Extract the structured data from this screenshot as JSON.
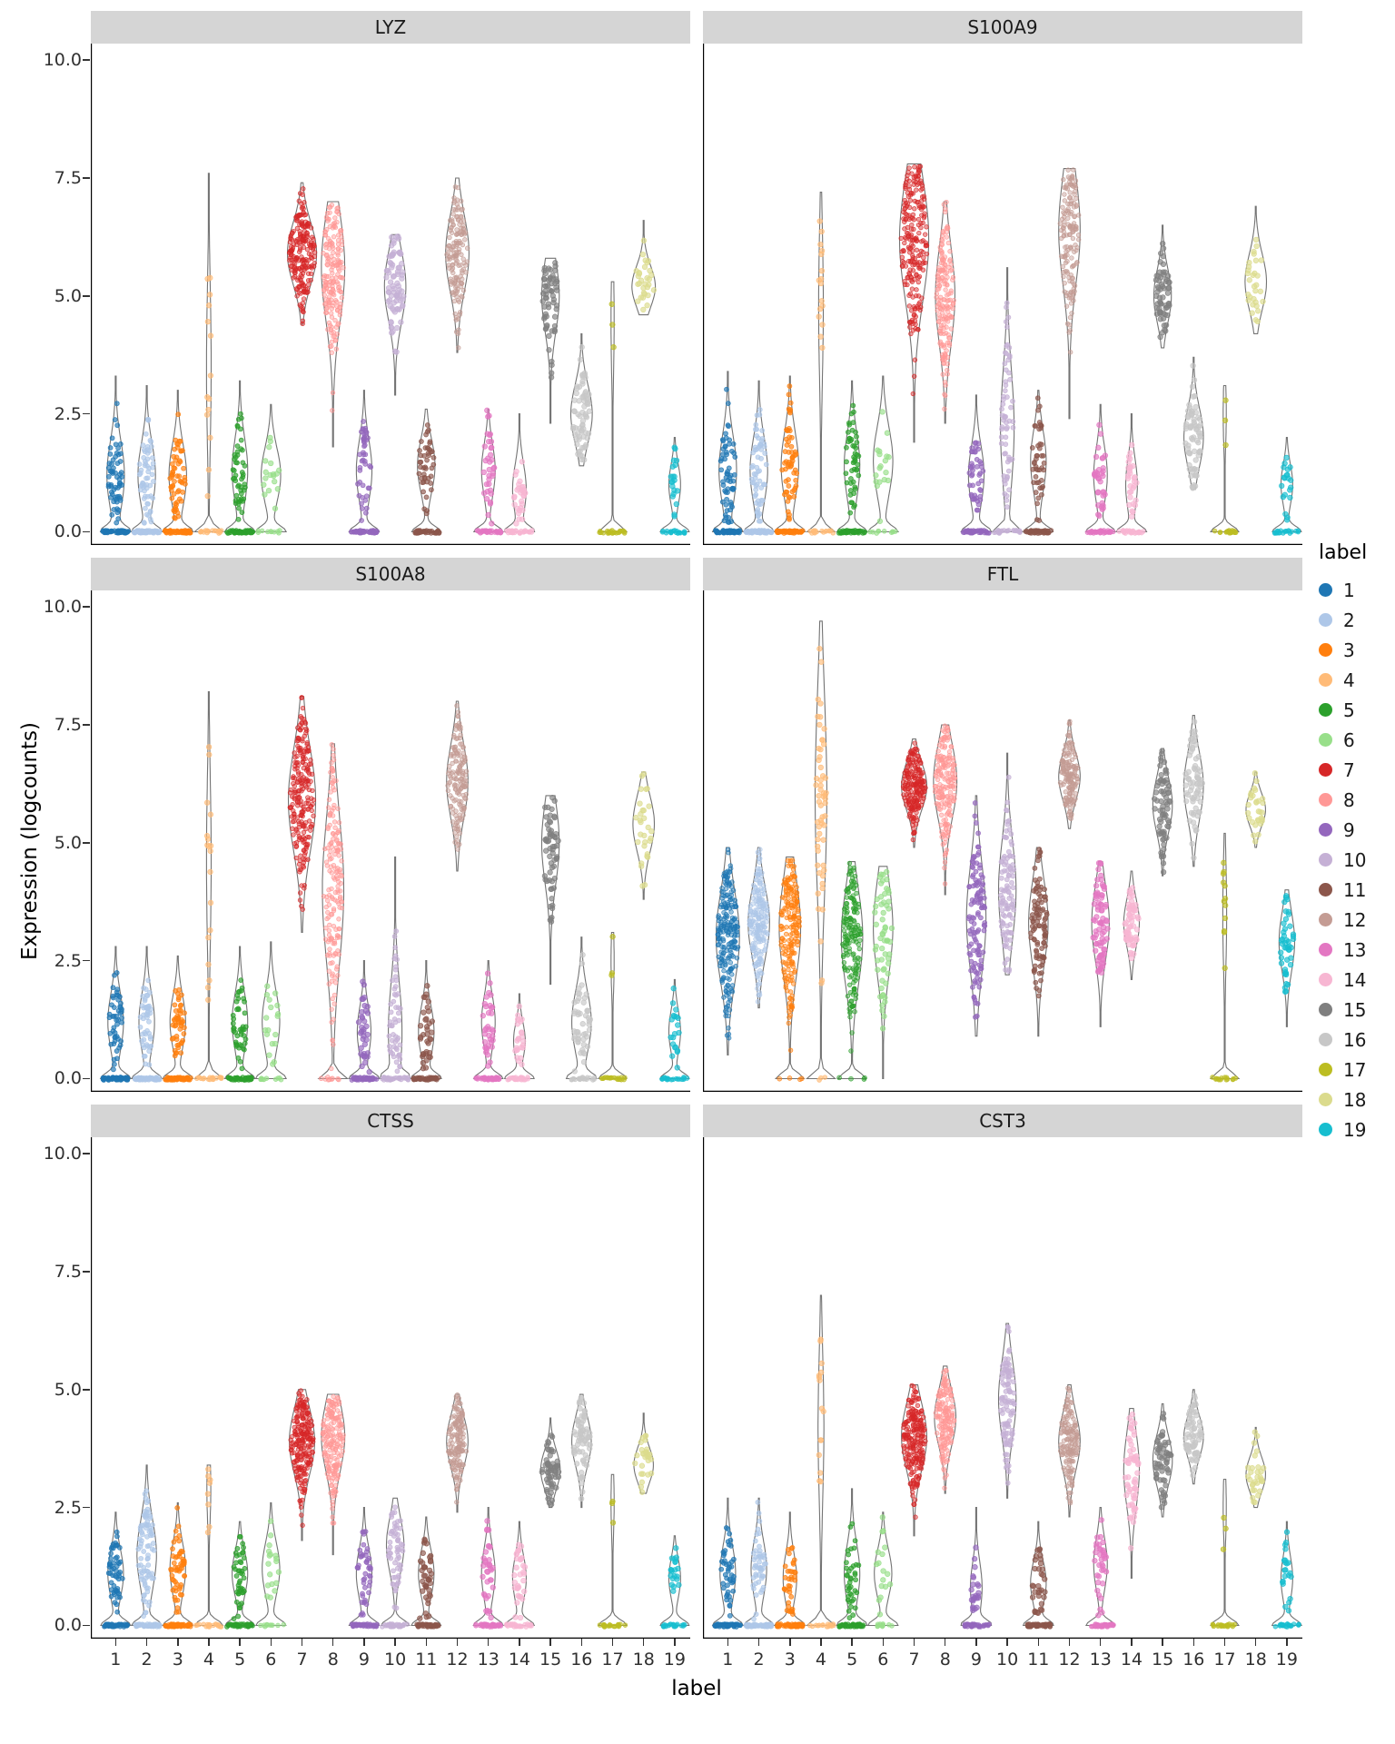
{
  "chart_data": {
    "type": "violin",
    "title": "",
    "xlabel": "label",
    "ylabel": "Expression (logcounts)",
    "x_categories": [
      "1",
      "2",
      "3",
      "4",
      "5",
      "6",
      "7",
      "8",
      "9",
      "10",
      "11",
      "12",
      "13",
      "14",
      "15",
      "16",
      "17",
      "18",
      "19"
    ],
    "y_ticks": [
      0,
      2.5,
      5,
      7.5,
      10
    ],
    "y_tick_labels": [
      "0.0",
      "2.5",
      "5.0",
      "7.5",
      "10.0"
    ],
    "ylim": [
      -0.3,
      10.4
    ],
    "grid": false,
    "legend": {
      "title": "label",
      "position": "right",
      "labels": [
        "1",
        "2",
        "3",
        "4",
        "5",
        "6",
        "7",
        "8",
        "9",
        "10",
        "11",
        "12",
        "13",
        "14",
        "15",
        "16",
        "17",
        "18",
        "19"
      ]
    },
    "palette": [
      "#1f77b4",
      "#aec7e8",
      "#ff7f0e",
      "#ffbb78",
      "#2ca02c",
      "#98df8a",
      "#d62728",
      "#ff9896",
      "#9467bd",
      "#c5b0d5",
      "#8c564b",
      "#c49c94",
      "#e377c2",
      "#f7b6d2",
      "#7f7f7f",
      "#c7c7c7",
      "#bcbd22",
      "#dbdb8d",
      "#17becf"
    ],
    "violin_format": [
      "center",
      "min",
      "max",
      "relative_width",
      "fraction_at_zero",
      "n_points"
    ],
    "panels": [
      {
        "title": "LYZ",
        "violins": [
          [
            1.2,
            0,
            3.3,
            0.45,
            0.5,
            120
          ],
          [
            1.2,
            0,
            3.1,
            0.45,
            0.5,
            120
          ],
          [
            1.2,
            0,
            3.0,
            0.45,
            0.5,
            120
          ],
          [
            3.5,
            0,
            7.6,
            0.12,
            0.55,
            32
          ],
          [
            1.3,
            0,
            3.2,
            0.4,
            0.5,
            100
          ],
          [
            1.2,
            0,
            2.7,
            0.5,
            0.35,
            28
          ],
          [
            5.9,
            4.4,
            7.4,
            0.75,
            0,
            210
          ],
          [
            5.6,
            1.8,
            7.0,
            0.6,
            0,
            180
          ],
          [
            1.3,
            0,
            3.0,
            0.4,
            0.5,
            90
          ],
          [
            5.2,
            2.9,
            6.3,
            0.55,
            0,
            80
          ],
          [
            1.4,
            0,
            2.6,
            0.45,
            0.5,
            90
          ],
          [
            5.9,
            3.8,
            7.5,
            0.6,
            0,
            150
          ],
          [
            1.3,
            0,
            2.6,
            0.35,
            0.5,
            70
          ],
          [
            0.9,
            0,
            2.5,
            0.35,
            0.5,
            60
          ],
          [
            5.0,
            2.3,
            5.8,
            0.45,
            0,
            60
          ],
          [
            2.5,
            1.4,
            4.2,
            0.55,
            0,
            70
          ],
          [
            4.5,
            0,
            5.3,
            0.08,
            0.88,
            26
          ],
          [
            5.2,
            4.6,
            6.6,
            0.6,
            0,
            30
          ],
          [
            1.0,
            0,
            2.0,
            0.3,
            0.5,
            40
          ]
        ]
      },
      {
        "title": "S100A9",
        "violins": [
          [
            1.3,
            0,
            3.4,
            0.45,
            0.5,
            120
          ],
          [
            1.3,
            0,
            3.2,
            0.45,
            0.5,
            120
          ],
          [
            1.4,
            0,
            3.3,
            0.45,
            0.5,
            120
          ],
          [
            4.8,
            0,
            7.2,
            0.12,
            0.5,
            32
          ],
          [
            1.4,
            0,
            3.2,
            0.4,
            0.5,
            100
          ],
          [
            1.5,
            0,
            3.3,
            0.5,
            0.35,
            28
          ],
          [
            6.2,
            1.9,
            7.8,
            0.75,
            0,
            220
          ],
          [
            5.0,
            2.3,
            7.0,
            0.5,
            0,
            170
          ],
          [
            1.2,
            0,
            2.9,
            0.4,
            0.5,
            90
          ],
          [
            2.2,
            0,
            5.6,
            0.35,
            0.3,
            90
          ],
          [
            1.5,
            0,
            3.0,
            0.4,
            0.5,
            90
          ],
          [
            6.4,
            2.4,
            7.7,
            0.55,
            0,
            150
          ],
          [
            1.2,
            0,
            2.7,
            0.35,
            0.5,
            70
          ],
          [
            1.0,
            0,
            2.5,
            0.3,
            0.5,
            60
          ],
          [
            5.0,
            3.9,
            6.5,
            0.45,
            0,
            60
          ],
          [
            2.0,
            0.9,
            3.7,
            0.5,
            0,
            70
          ],
          [
            2.5,
            0,
            3.1,
            0.08,
            0.88,
            22
          ],
          [
            5.3,
            4.2,
            6.9,
            0.55,
            0,
            30
          ],
          [
            1.0,
            0,
            2.0,
            0.3,
            0.5,
            40
          ]
        ]
      },
      {
        "title": "S100A8",
        "violins": [
          [
            1.2,
            0,
            2.8,
            0.4,
            0.55,
            110
          ],
          [
            1.2,
            0,
            2.8,
            0.4,
            0.55,
            110
          ],
          [
            1.2,
            0,
            2.6,
            0.4,
            0.55,
            110
          ],
          [
            4.6,
            0,
            8.2,
            0.12,
            0.5,
            36
          ],
          [
            1.2,
            0,
            2.8,
            0.4,
            0.5,
            90
          ],
          [
            1.2,
            0,
            2.9,
            0.45,
            0.35,
            28
          ],
          [
            5.9,
            3.1,
            8.1,
            0.7,
            0,
            220
          ],
          [
            4.0,
            0,
            7.1,
            0.55,
            0.05,
            180
          ],
          [
            1.0,
            0,
            2.5,
            0.35,
            0.55,
            80
          ],
          [
            1.0,
            0,
            4.7,
            0.35,
            0.4,
            90
          ],
          [
            1.0,
            0,
            2.5,
            0.4,
            0.55,
            80
          ],
          [
            6.3,
            4.4,
            8.0,
            0.55,
            0,
            150
          ],
          [
            1.2,
            0,
            2.5,
            0.35,
            0.5,
            70
          ],
          [
            0.8,
            0,
            1.8,
            0.3,
            0.5,
            50
          ],
          [
            5.0,
            2.0,
            6.0,
            0.45,
            0,
            60
          ],
          [
            1.2,
            0,
            3.0,
            0.5,
            0.3,
            70
          ],
          [
            2.5,
            0,
            3.1,
            0.08,
            0.88,
            22
          ],
          [
            5.4,
            3.8,
            6.5,
            0.55,
            0,
            30
          ],
          [
            1.0,
            0,
            2.1,
            0.3,
            0.5,
            40
          ]
        ]
      },
      {
        "title": "FTL",
        "violins": [
          [
            3.0,
            0.5,
            4.9,
            0.6,
            0,
            220
          ],
          [
            3.3,
            1.5,
            4.9,
            0.55,
            0,
            200
          ],
          [
            3.2,
            0,
            4.7,
            0.55,
            0.02,
            200
          ],
          [
            6.0,
            0,
            9.7,
            0.3,
            0.05,
            60
          ],
          [
            3.0,
            0,
            4.6,
            0.55,
            0.02,
            180
          ],
          [
            3.2,
            0,
            4.5,
            0.5,
            0,
            60
          ],
          [
            6.2,
            4.9,
            7.2,
            0.65,
            0,
            200
          ],
          [
            6.3,
            3.9,
            7.5,
            0.6,
            0,
            180
          ],
          [
            3.4,
            0.9,
            6.0,
            0.5,
            0,
            120
          ],
          [
            4.0,
            2.2,
            6.9,
            0.45,
            0,
            100
          ],
          [
            3.3,
            0.9,
            4.9,
            0.5,
            0,
            100
          ],
          [
            6.4,
            5.3,
            7.6,
            0.55,
            0,
            150
          ],
          [
            3.3,
            1.1,
            4.6,
            0.45,
            0,
            80
          ],
          [
            3.3,
            2.1,
            4.4,
            0.4,
            0,
            60
          ],
          [
            5.8,
            4.3,
            7.0,
            0.5,
            0,
            70
          ],
          [
            6.2,
            4.5,
            7.7,
            0.5,
            0,
            70
          ],
          [
            3.5,
            0,
            5.2,
            0.1,
            0.55,
            26
          ],
          [
            5.7,
            4.9,
            6.5,
            0.5,
            0,
            30
          ],
          [
            2.9,
            1.1,
            4.0,
            0.4,
            0,
            45
          ]
        ]
      },
      {
        "title": "CTSS",
        "violins": [
          [
            1.1,
            0,
            2.4,
            0.4,
            0.5,
            110
          ],
          [
            1.5,
            0,
            3.4,
            0.5,
            0.35,
            130
          ],
          [
            1.2,
            0,
            2.6,
            0.4,
            0.5,
            110
          ],
          [
            2.9,
            0,
            3.4,
            0.1,
            0.7,
            26
          ],
          [
            1.1,
            0,
            2.2,
            0.4,
            0.5,
            90
          ],
          [
            1.2,
            0,
            2.6,
            0.45,
            0.35,
            28
          ],
          [
            3.9,
            1.8,
            5.0,
            0.65,
            0,
            220
          ],
          [
            4.0,
            1.5,
            4.9,
            0.6,
            0,
            180
          ],
          [
            1.1,
            0,
            2.5,
            0.4,
            0.5,
            90
          ],
          [
            1.7,
            0,
            2.7,
            0.45,
            0.35,
            90
          ],
          [
            1.1,
            0,
            2.3,
            0.4,
            0.5,
            80
          ],
          [
            3.9,
            2.4,
            4.9,
            0.55,
            0,
            150
          ],
          [
            1.1,
            0,
            2.5,
            0.35,
            0.5,
            70
          ],
          [
            1.0,
            0,
            2.2,
            0.35,
            0.45,
            60
          ],
          [
            3.3,
            2.5,
            4.4,
            0.5,
            0,
            60
          ],
          [
            3.9,
            2.5,
            4.9,
            0.5,
            0,
            70
          ],
          [
            2.6,
            0,
            3.2,
            0.08,
            0.88,
            22
          ],
          [
            3.4,
            2.8,
            4.5,
            0.5,
            0,
            30
          ],
          [
            1.0,
            0,
            1.9,
            0.3,
            0.5,
            40
          ]
        ]
      },
      {
        "title": "CST3",
        "violins": [
          [
            1.1,
            0,
            2.7,
            0.4,
            0.55,
            100
          ],
          [
            1.2,
            0,
            2.7,
            0.4,
            0.5,
            100
          ],
          [
            1.0,
            0,
            2.4,
            0.35,
            0.6,
            90
          ],
          [
            4.2,
            0,
            7.0,
            0.15,
            0.5,
            30
          ],
          [
            1.1,
            0,
            2.9,
            0.4,
            0.55,
            90
          ],
          [
            1.1,
            0,
            2.4,
            0.45,
            0.4,
            28
          ],
          [
            4.0,
            1.9,
            5.1,
            0.65,
            0,
            220
          ],
          [
            4.4,
            2.8,
            5.5,
            0.55,
            0,
            160
          ],
          [
            0.8,
            0,
            2.5,
            0.3,
            0.6,
            60
          ],
          [
            4.8,
            2.7,
            6.4,
            0.45,
            0,
            100
          ],
          [
            0.9,
            0,
            2.2,
            0.4,
            0.6,
            80
          ],
          [
            3.9,
            2.3,
            5.1,
            0.55,
            0,
            150
          ],
          [
            1.3,
            0,
            2.5,
            0.35,
            0.5,
            70
          ],
          [
            3.3,
            1.0,
            4.6,
            0.4,
            0,
            60
          ],
          [
            3.5,
            2.3,
            4.7,
            0.5,
            0,
            60
          ],
          [
            4.0,
            3.0,
            5.0,
            0.5,
            0,
            70
          ],
          [
            2.5,
            0,
            3.1,
            0.08,
            0.88,
            22
          ],
          [
            3.2,
            2.5,
            4.2,
            0.5,
            0,
            30
          ],
          [
            1.0,
            0,
            2.2,
            0.3,
            0.5,
            45
          ]
        ]
      }
    ]
  }
}
